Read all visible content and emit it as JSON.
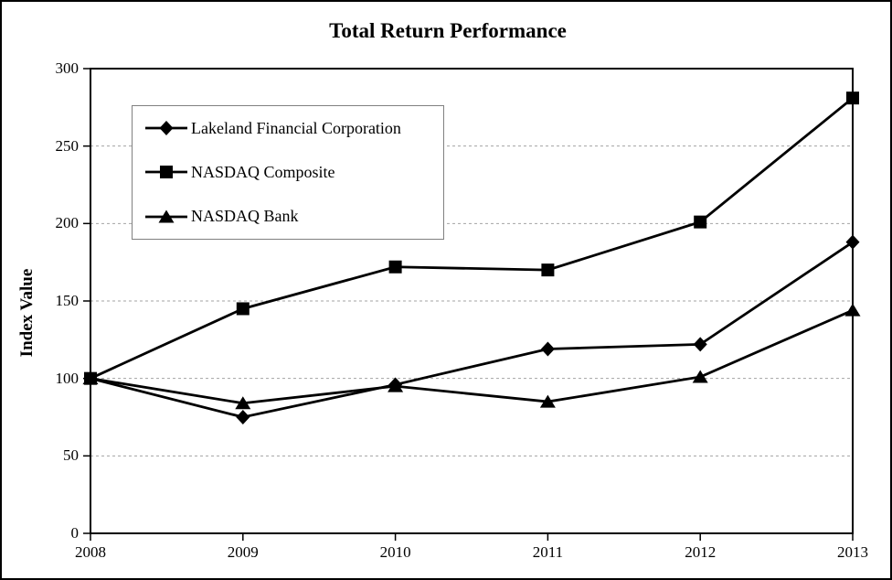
{
  "chart_data": {
    "type": "line",
    "title": "Total Return Performance",
    "xlabel": "",
    "ylabel": "Index Value",
    "x": [
      "2008",
      "2009",
      "2010",
      "2011",
      "2012",
      "2013"
    ],
    "series": [
      {
        "name": "Lakeland Financial Corporation",
        "marker": "diamond",
        "values": [
          100,
          75,
          96,
          119,
          122,
          188
        ]
      },
      {
        "name": "NASDAQ Composite",
        "marker": "square",
        "values": [
          100,
          145,
          172,
          170,
          201,
          281
        ]
      },
      {
        "name": "NASDAQ Bank",
        "marker": "triangle",
        "values": [
          100,
          84,
          95,
          85,
          101,
          144
        ]
      }
    ],
    "ylim": [
      0,
      300
    ],
    "yticks": [
      0,
      50,
      100,
      150,
      200,
      250,
      300
    ],
    "grid": "horizontal-dashed",
    "legend_position": "inside-upper-left",
    "draw_order": [
      0,
      2,
      1
    ],
    "colors": {
      "line": "#000000",
      "grid": "#a3a3a3",
      "legend_border": "#808080",
      "background": "#ffffff",
      "text": "#000000"
    }
  }
}
